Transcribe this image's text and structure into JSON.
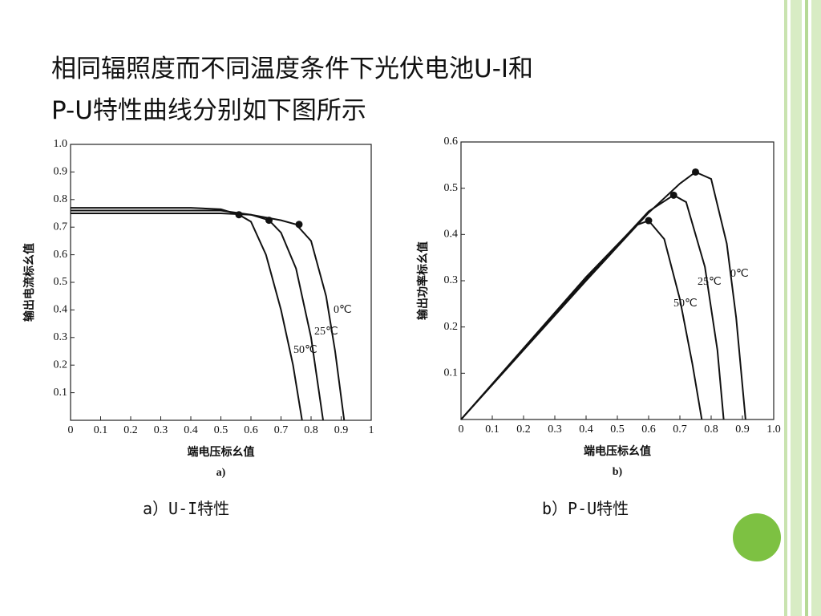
{
  "slide": {
    "title": [
      "相同辐照度而不同温度条件下光伏电池U-I和",
      "P-U特性曲线分别如下图所示"
    ],
    "captions": [
      "a）U-I特性",
      "b）P-U特性"
    ]
  },
  "chart_data": [
    {
      "type": "line",
      "sub_label": "a)",
      "x_label": "端电压标幺值",
      "y_label": "输出电流标幺值",
      "grid": false,
      "color": "#111111",
      "xlim": [
        0,
        1
      ],
      "ylim": [
        0,
        1
      ],
      "xticks": [
        0,
        0.1,
        0.2,
        0.3,
        0.4,
        0.5,
        0.6,
        0.7,
        0.8,
        0.9,
        1
      ],
      "yticks": [
        0.1,
        0.2,
        0.3,
        0.4,
        0.5,
        0.6,
        0.7,
        0.8,
        0.9,
        {
          "value": 1,
          "label": "1.0"
        }
      ],
      "series": [
        {
          "name": "0℃",
          "x": [
            0,
            0.1,
            0.2,
            0.3,
            0.4,
            0.5,
            0.6,
            0.7,
            0.75,
            0.8,
            0.85,
            0.88,
            0.91
          ],
          "values": [
            0.75,
            0.75,
            0.75,
            0.75,
            0.75,
            0.75,
            0.745,
            0.725,
            0.71,
            0.65,
            0.45,
            0.25,
            0
          ],
          "mpp": {
            "x": 0.76,
            "y": 0.71
          }
        },
        {
          "name": "25℃",
          "x": [
            0,
            0.1,
            0.2,
            0.3,
            0.4,
            0.5,
            0.6,
            0.66,
            0.7,
            0.75,
            0.8,
            0.84
          ],
          "values": [
            0.76,
            0.76,
            0.76,
            0.76,
            0.76,
            0.76,
            0.745,
            0.725,
            0.68,
            0.55,
            0.3,
            0
          ],
          "mpp": {
            "x": 0.66,
            "y": 0.725
          }
        },
        {
          "name": "50℃",
          "x": [
            0,
            0.1,
            0.2,
            0.3,
            0.4,
            0.5,
            0.56,
            0.6,
            0.65,
            0.7,
            0.74,
            0.77
          ],
          "values": [
            0.77,
            0.77,
            0.77,
            0.77,
            0.77,
            0.765,
            0.745,
            0.72,
            0.6,
            0.4,
            0.2,
            0
          ],
          "mpp": {
            "x": 0.56,
            "y": 0.745
          }
        }
      ]
    },
    {
      "type": "line",
      "sub_label": "b)",
      "x_label": "端电压标幺值",
      "y_label": "输出功率标幺值",
      "grid": false,
      "color": "#111111",
      "xlim": [
        0,
        1
      ],
      "ylim": [
        0,
        0.6
      ],
      "xticks": [
        0,
        0.1,
        0.2,
        0.3,
        0.4,
        0.5,
        0.6,
        0.7,
        0.8,
        0.9,
        {
          "value": 1,
          "label": "1.0"
        }
      ],
      "yticks": [
        0.1,
        0.2,
        0.3,
        0.4,
        0.5,
        0.6
      ],
      "series": [
        {
          "name": "0℃",
          "x": [
            0,
            0.2,
            0.4,
            0.6,
            0.7,
            0.75,
            0.8,
            0.85,
            0.88,
            0.91
          ],
          "values": [
            0,
            0.15,
            0.3,
            0.447,
            0.51,
            0.535,
            0.52,
            0.38,
            0.22,
            0
          ],
          "mpp": {
            "x": 0.75,
            "y": 0.535
          }
        },
        {
          "name": "25℃",
          "x": [
            0,
            0.2,
            0.4,
            0.6,
            0.68,
            0.72,
            0.78,
            0.82,
            0.84
          ],
          "values": [
            0,
            0.152,
            0.304,
            0.45,
            0.485,
            0.47,
            0.33,
            0.15,
            0
          ],
          "mpp": {
            "x": 0.68,
            "y": 0.485
          }
        },
        {
          "name": "50℃",
          "x": [
            0,
            0.2,
            0.4,
            0.56,
            0.6,
            0.65,
            0.7,
            0.74,
            0.77
          ],
          "values": [
            0,
            0.154,
            0.308,
            0.42,
            0.43,
            0.39,
            0.26,
            0.12,
            0
          ],
          "mpp": {
            "x": 0.6,
            "y": 0.43
          }
        }
      ]
    }
  ]
}
